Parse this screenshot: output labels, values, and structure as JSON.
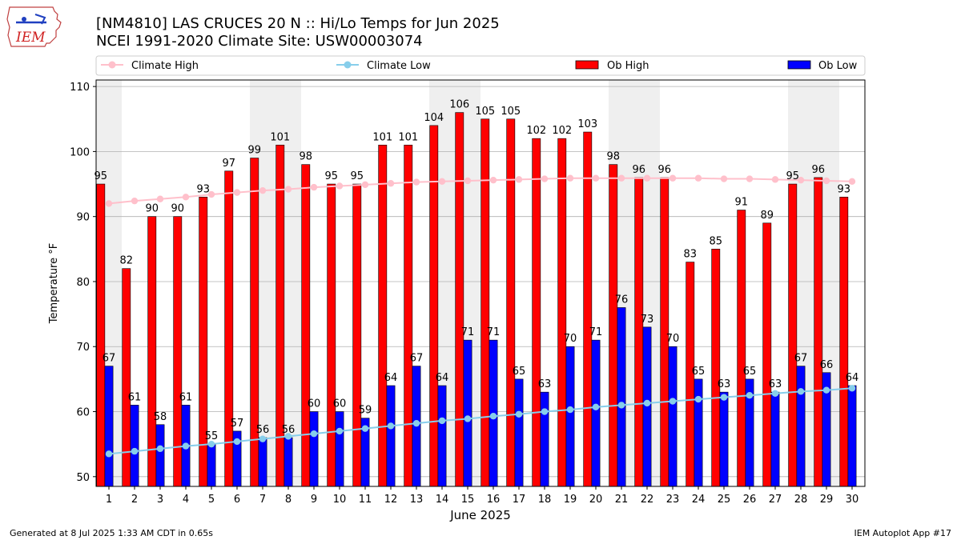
{
  "header": {
    "logo_text": "IEM",
    "title_line1": "[NM4810] LAS CRUCES 20 N :: Hi/Lo Temps for Jun 2025",
    "title_line2": "NCEI 1991-2020 Climate Site: USW00003074"
  },
  "footer": {
    "left": "Generated at 8 Jul 2025 1:33 AM CDT in 0.65s",
    "right": "IEM Autoplot App #17"
  },
  "colors": {
    "ob_high": "#ff0000",
    "ob_low": "#0000ff",
    "climate_high": "#ffc0cb",
    "climate_low": "#87ceeb",
    "weekend_shade": "#efefef",
    "grid": "#b0b0b0"
  },
  "chart_data": {
    "type": "bar",
    "xlabel": "June 2025",
    "ylabel": "Temperature °F",
    "ylim": [
      48.5,
      111
    ],
    "yticks": [
      50,
      60,
      70,
      80,
      90,
      100,
      110
    ],
    "grid": true,
    "legend_position": "top",
    "categories": [
      "1",
      "2",
      "3",
      "4",
      "5",
      "6",
      "7",
      "8",
      "9",
      "10",
      "11",
      "12",
      "13",
      "14",
      "15",
      "16",
      "17",
      "18",
      "19",
      "20",
      "21",
      "22",
      "23",
      "24",
      "25",
      "26",
      "27",
      "28",
      "29",
      "30"
    ],
    "weekend_days": [
      1,
      7,
      8,
      14,
      15,
      21,
      22,
      28,
      29
    ],
    "series": [
      {
        "name": "Ob High",
        "kind": "bar",
        "values": [
          95,
          82,
          90,
          90,
          93,
          97,
          99,
          101,
          98,
          95,
          95,
          101,
          101,
          104,
          106,
          105,
          105,
          102,
          102,
          103,
          98,
          96,
          96,
          83,
          85,
          91,
          89,
          95,
          96,
          93
        ]
      },
      {
        "name": "Ob Low",
        "kind": "bar",
        "values": [
          67,
          61,
          58,
          61,
          55,
          57,
          56,
          56,
          60,
          60,
          59,
          64,
          67,
          64,
          71,
          71,
          65,
          63,
          70,
          71,
          76,
          73,
          70,
          65,
          63,
          65,
          63,
          67,
          66,
          64
        ]
      },
      {
        "name": "Climate High",
        "kind": "line",
        "values": [
          92.0,
          92.4,
          92.7,
          93.0,
          93.4,
          93.7,
          94.0,
          94.2,
          94.5,
          94.7,
          94.9,
          95.1,
          95.3,
          95.4,
          95.5,
          95.6,
          95.7,
          95.8,
          95.9,
          95.9,
          95.9,
          95.9,
          95.9,
          95.9,
          95.8,
          95.8,
          95.7,
          95.6,
          95.5,
          95.4
        ]
      },
      {
        "name": "Climate Low",
        "kind": "line",
        "values": [
          53.5,
          53.9,
          54.3,
          54.7,
          55.0,
          55.4,
          55.8,
          56.2,
          56.6,
          57.0,
          57.4,
          57.8,
          58.2,
          58.6,
          58.9,
          59.3,
          59.6,
          60.0,
          60.3,
          60.7,
          61.0,
          61.3,
          61.6,
          61.9,
          62.2,
          62.5,
          62.8,
          63.1,
          63.3,
          63.6
        ]
      }
    ]
  }
}
